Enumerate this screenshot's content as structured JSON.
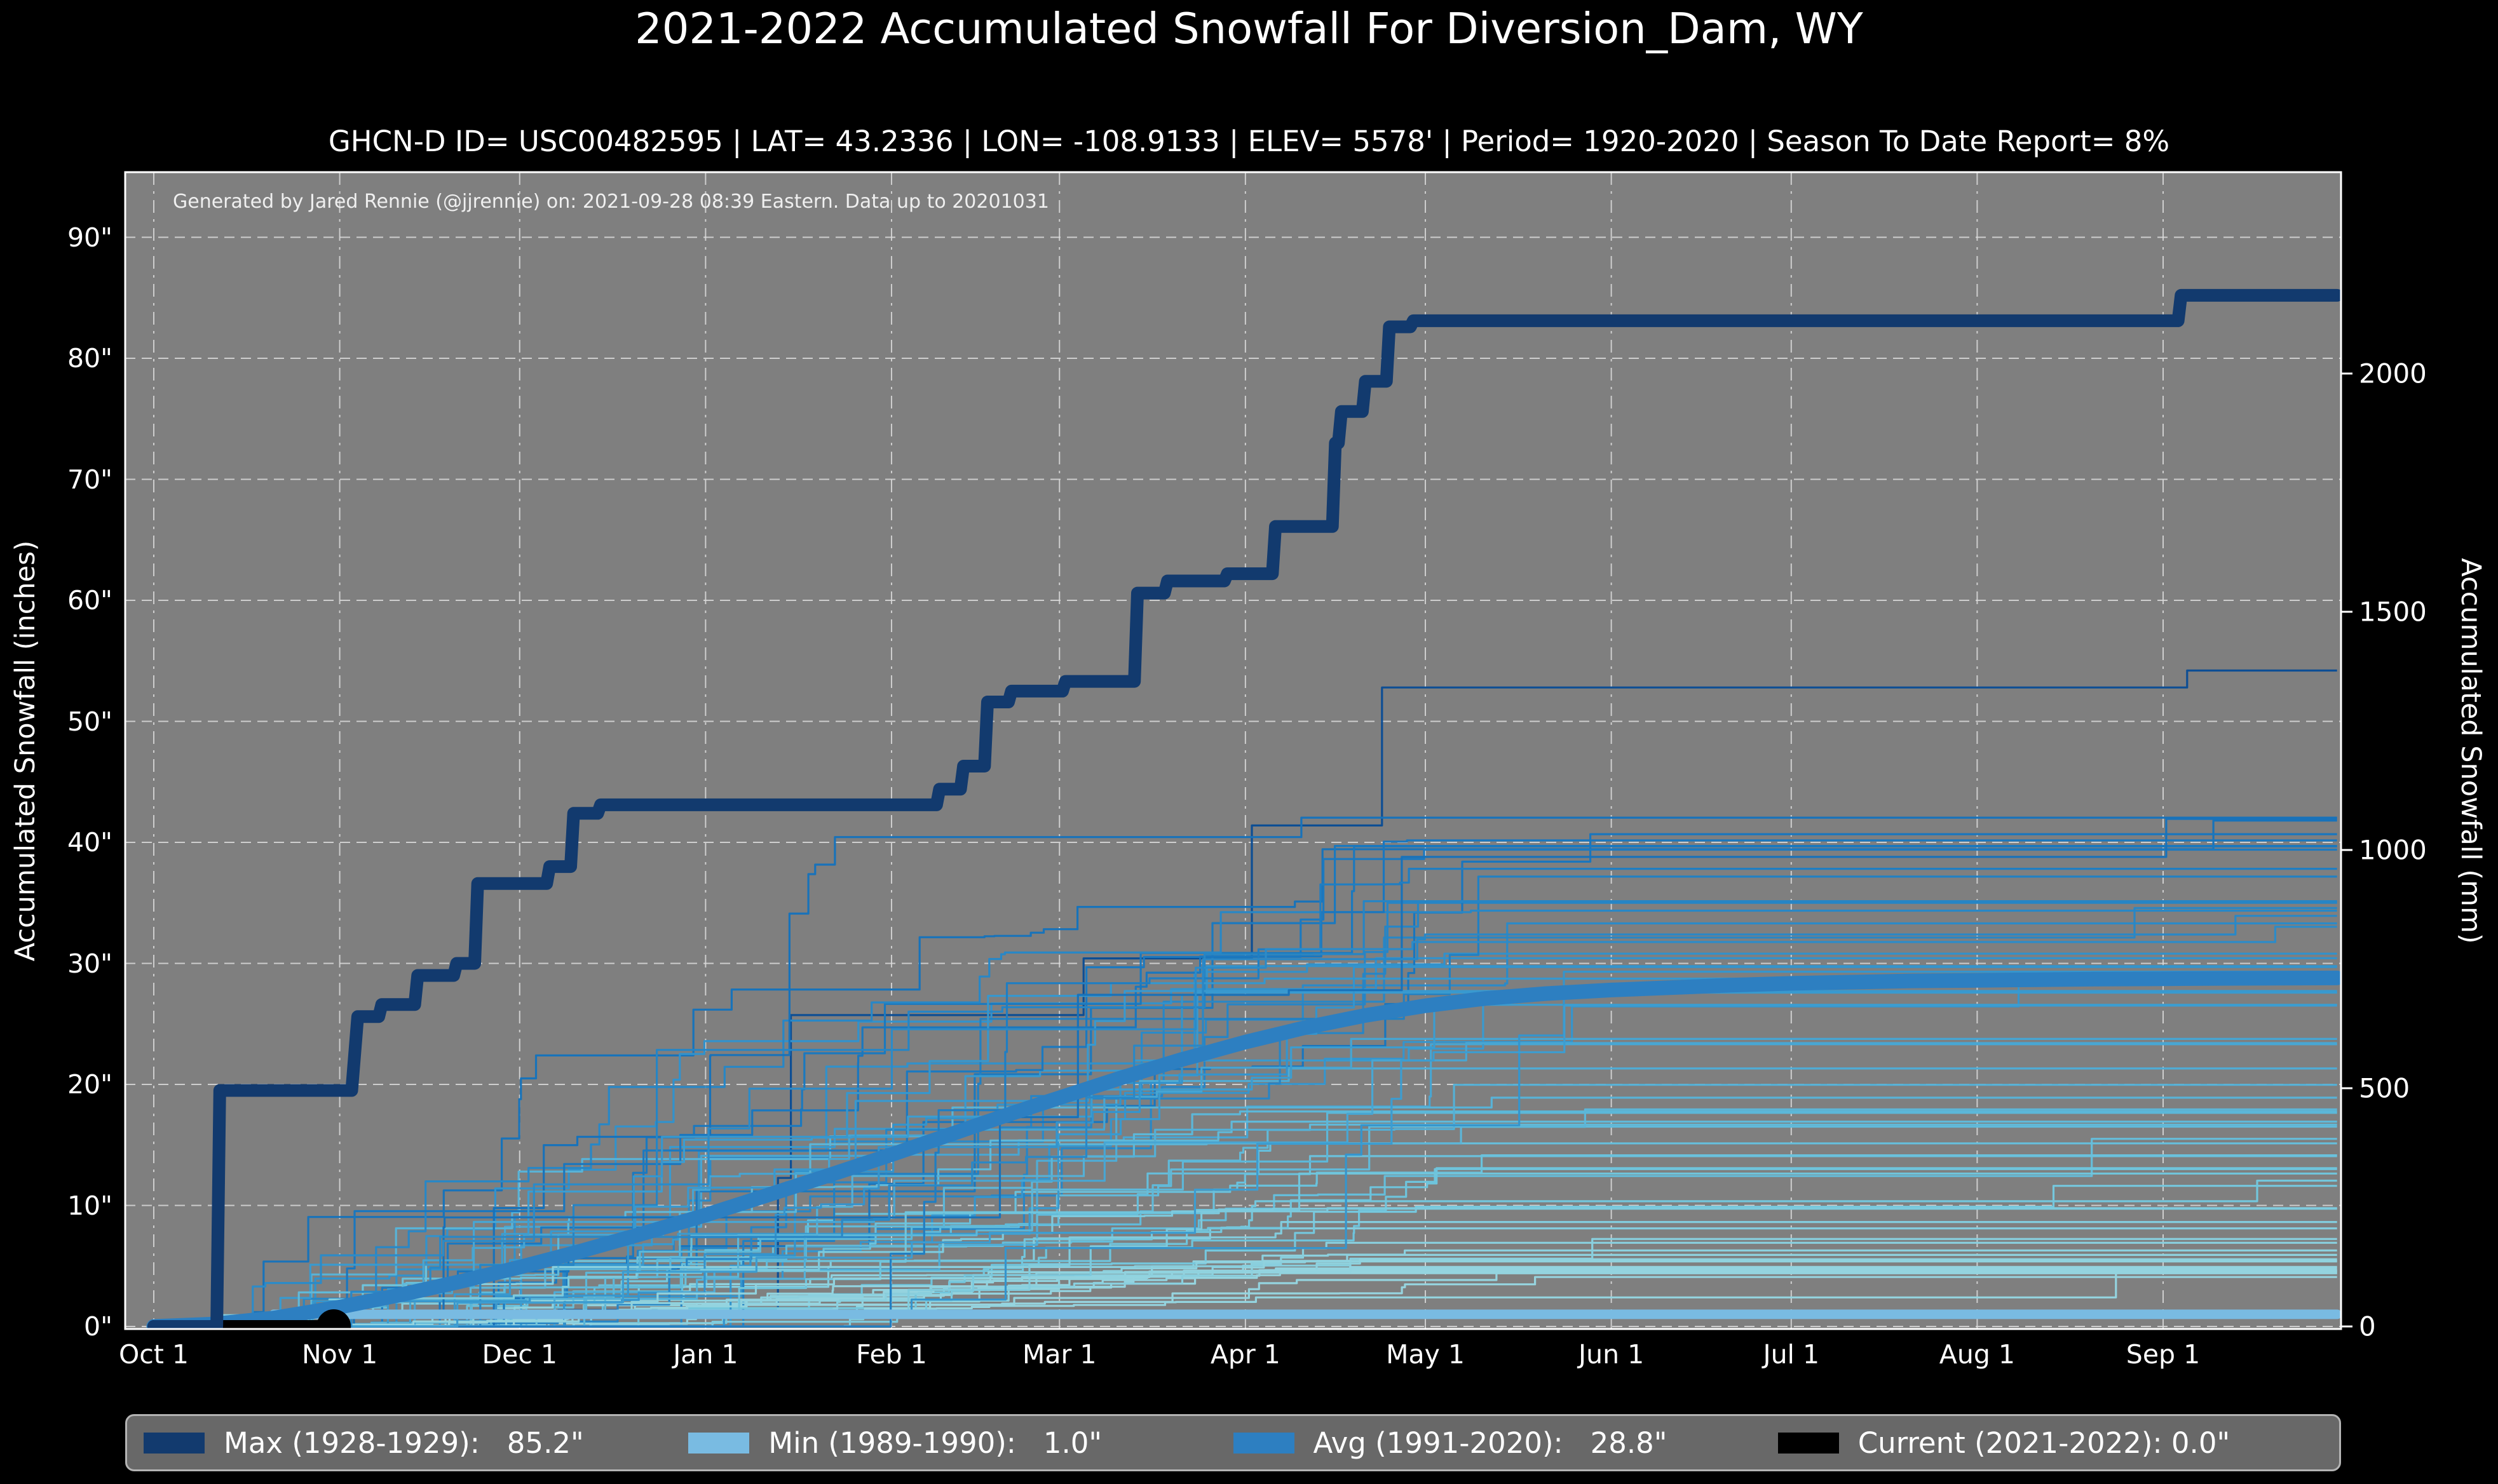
{
  "title": "2021-2022 Accumulated Snowfall For Diversion_Dam, WY",
  "subtitle": "GHCN-D ID= USC00482595 | LAT= 43.2336 | LON= -108.9133 | ELEV= 5578' | Period= 1920-2020 | Season To Date Report= 8%",
  "attribution": "Generated by Jared Rennie (@jjrennie) on: 2021-09-28 08:39 Eastern. Data up to 20201031",
  "axes": {
    "left_label": "Accumulated Snowfall (inches)",
    "right_label": "Accumulated Snowfall (mm)",
    "left_ticks": [
      "0\"",
      "10\"",
      "20\"",
      "30\"",
      "40\"",
      "50\"",
      "60\"",
      "70\"",
      "80\"",
      "90\""
    ],
    "right_ticks_mm": [
      0,
      500,
      1000,
      1500,
      2000
    ],
    "x_ticks": [
      "Oct 1",
      "Nov 1",
      "Dec 1",
      "Jan 1",
      "Feb 1",
      "Mar 1",
      "Apr 1",
      "May 1",
      "Jun 1",
      "Jul 1",
      "Aug 1",
      "Sep 1"
    ]
  },
  "legend": [
    {
      "label": "Max (1928-1929):   85.2\"",
      "color": "#123a6e"
    },
    {
      "label": "Min (1989-1990):   1.0\"",
      "color": "#79bbe2"
    },
    {
      "label": "Avg (1991-2020):   28.8\"",
      "color": "#2d7fc1"
    },
    {
      "label": "Current (2021-2022): 0.0\"",
      "color": "#000000"
    }
  ],
  "colors": {
    "page_bg": "#000000",
    "plot_bg": "#7f7f7f",
    "grid": "#dcdcdc",
    "spine": "#ffffff",
    "max_line": "#123a6e",
    "min_line": "#79bbe2",
    "avg_line": "#2d7fc1",
    "current_line": "#000000"
  },
  "chart_data": {
    "type": "line",
    "x_unit": "days since Oct 1",
    "month_tick_labels": [
      "Oct 1",
      "Nov 1",
      "Dec 1",
      "Jan 1",
      "Feb 1",
      "Mar 1",
      "Apr 1",
      "May 1",
      "Jun 1",
      "Jul 1",
      "Aug 1",
      "Sep 1"
    ],
    "month_start_days": [
      0,
      31,
      61,
      92,
      123,
      151,
      182,
      212,
      243,
      273,
      304,
      335
    ],
    "ylim_inches": [
      0,
      95.4
    ],
    "right_axis_ticks_mm": [
      0,
      500,
      1000,
      1500,
      2000
    ],
    "grid_inches": [
      0,
      10,
      20,
      30,
      40,
      50,
      60,
      70,
      80,
      90
    ],
    "series": [
      {
        "name": "Max (1928-1929)",
        "total_inches": 85.2,
        "color": "#123a6e",
        "width": 20,
        "points": [
          [
            0,
            0
          ],
          [
            10.5,
            0
          ],
          [
            11,
            19.5
          ],
          [
            33,
            19.5
          ],
          [
            34,
            25.6
          ],
          [
            37.5,
            25.6
          ],
          [
            38,
            26.6
          ],
          [
            43.5,
            26.6
          ],
          [
            44,
            29.0
          ],
          [
            50,
            29.0
          ],
          [
            50.5,
            30.0
          ],
          [
            53.5,
            30.0
          ],
          [
            54,
            36.6
          ],
          [
            65.5,
            36.6
          ],
          [
            66,
            38.0
          ],
          [
            69.5,
            38.0
          ],
          [
            70,
            42.4
          ],
          [
            74,
            42.4
          ],
          [
            74.5,
            43.1
          ],
          [
            130.5,
            43.1
          ],
          [
            131,
            44.4
          ],
          [
            134.5,
            44.4
          ],
          [
            135,
            46.3
          ],
          [
            138.5,
            46.3
          ],
          [
            139,
            51.6
          ],
          [
            142.5,
            51.6
          ],
          [
            143,
            52.5
          ],
          [
            151.5,
            52.5
          ],
          [
            152,
            53.3
          ],
          [
            163.5,
            53.3
          ],
          [
            164,
            60.6
          ],
          [
            168.5,
            60.6
          ],
          [
            169,
            61.6
          ],
          [
            178.5,
            61.6
          ],
          [
            179,
            62.2
          ],
          [
            186.5,
            62.2
          ],
          [
            187,
            66.1
          ],
          [
            196.5,
            66.1
          ],
          [
            197,
            73.0
          ],
          [
            197.5,
            73.0
          ],
          [
            198,
            75.6
          ],
          [
            201.5,
            75.6
          ],
          [
            202,
            78.1
          ],
          [
            205.5,
            78.1
          ],
          [
            206,
            82.6
          ],
          [
            209.5,
            82.6
          ],
          [
            210,
            83.1
          ],
          [
            337.5,
            83.1
          ],
          [
            338,
            85.2
          ],
          [
            364,
            85.2
          ]
        ]
      },
      {
        "name": "Min (1989-1990)",
        "total_inches": 1.0,
        "color": "#79bbe2",
        "width": 15,
        "points": [
          [
            0,
            0
          ],
          [
            19,
            0
          ],
          [
            20,
            1.0
          ],
          [
            364,
            1.0
          ]
        ]
      },
      {
        "name": "Avg (1991-2020)",
        "total_inches": 28.8,
        "color": "#2d7fc1",
        "width": 23,
        "points": [
          [
            0,
            0
          ],
          [
            10,
            0.2
          ],
          [
            20,
            0.7
          ],
          [
            31,
            1.6
          ],
          [
            41,
            2.6
          ],
          [
            51,
            3.7
          ],
          [
            61,
            4.9
          ],
          [
            71,
            6.2
          ],
          [
            81,
            7.6
          ],
          [
            92,
            9.2
          ],
          [
            102,
            10.8
          ],
          [
            112,
            12.4
          ],
          [
            123,
            14.2
          ],
          [
            133,
            15.9
          ],
          [
            143,
            17.6
          ],
          [
            151,
            18.9
          ],
          [
            161,
            20.5
          ],
          [
            171,
            22.0
          ],
          [
            182,
            23.5
          ],
          [
            192,
            24.7
          ],
          [
            202,
            25.7
          ],
          [
            212,
            26.5
          ],
          [
            222,
            27.1
          ],
          [
            232,
            27.5
          ],
          [
            243,
            27.8
          ],
          [
            253,
            28.0
          ],
          [
            263,
            28.2
          ],
          [
            273,
            28.35
          ],
          [
            283,
            28.45
          ],
          [
            293,
            28.55
          ],
          [
            304,
            28.6
          ],
          [
            314,
            28.65
          ],
          [
            324,
            28.7
          ],
          [
            335,
            28.73
          ],
          [
            345,
            28.76
          ],
          [
            355,
            28.78
          ],
          [
            364,
            28.8
          ]
        ]
      },
      {
        "name": "Current (2021-2022)",
        "total_inches": 0.0,
        "color": "#000000",
        "width": 20,
        "end_marker_radius": 27,
        "points": [
          [
            0,
            0
          ],
          [
            30,
            0
          ]
        ]
      }
    ],
    "background_years": {
      "count": 72,
      "description": "thin lines: each individual season 1920-2020, accumulated snowfall",
      "min_total_inches": 4,
      "max_total_inches": 54.2,
      "seed": 13,
      "palette_low_to_high": [
        "#a8dce0",
        "#6cc3dc",
        "#3a9bd0",
        "#1976be",
        "#0d4e94"
      ]
    }
  }
}
